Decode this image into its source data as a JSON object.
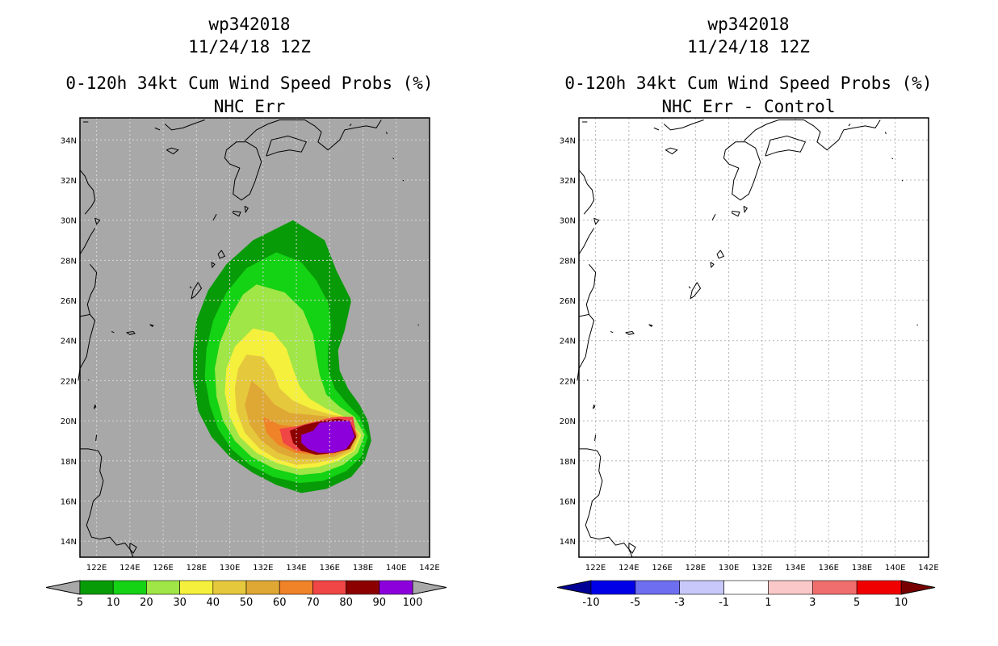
{
  "panels": [
    {
      "storm_id": "wp342018",
      "datetime": "11/24/18 12Z",
      "product": "0-120h 34kt Cum Wind Speed Probs (%)",
      "subtitle": "NHC Err",
      "background": "#a8a8a8",
      "colorbar": {
        "colors": [
          "#079b07",
          "#14d214",
          "#9fe646",
          "#f5f03c",
          "#e6c83c",
          "#dfa834",
          "#f08228",
          "#f04646",
          "#8c0000",
          "#8c00dc"
        ],
        "under_color": "#a8a8a8",
        "over_color": "#a8a8a8",
        "labels": [
          "5",
          "10",
          "20",
          "30",
          "40",
          "50",
          "60",
          "70",
          "80",
          "90",
          "100"
        ]
      }
    },
    {
      "storm_id": "wp342018",
      "datetime": "11/24/18 12Z",
      "product": "0-120h 34kt Cum Wind Speed Probs (%)",
      "subtitle": "NHC Err - Control",
      "background": "#ffffff",
      "colorbar": {
        "colors": [
          "#0000e6",
          "#6e6ef0",
          "#c8c8fa",
          "#ffffff",
          "#fac8c8",
          "#f06e6e",
          "#f00000"
        ],
        "under_color": "#000096",
        "over_color": "#780000",
        "labels": [
          "-10",
          "-5",
          "-3",
          "-1",
          "1",
          "3",
          "5",
          "10"
        ]
      }
    }
  ],
  "map": {
    "lon_labels": [
      "122E",
      "124E",
      "126E",
      "128E",
      "130E",
      "132E",
      "134E",
      "136E",
      "138E",
      "140E",
      "142E"
    ],
    "lat_labels": [
      "14N",
      "16N",
      "18N",
      "20N",
      "22N",
      "24N",
      "26N",
      "28N",
      "30N",
      "32N",
      "34N"
    ]
  }
}
